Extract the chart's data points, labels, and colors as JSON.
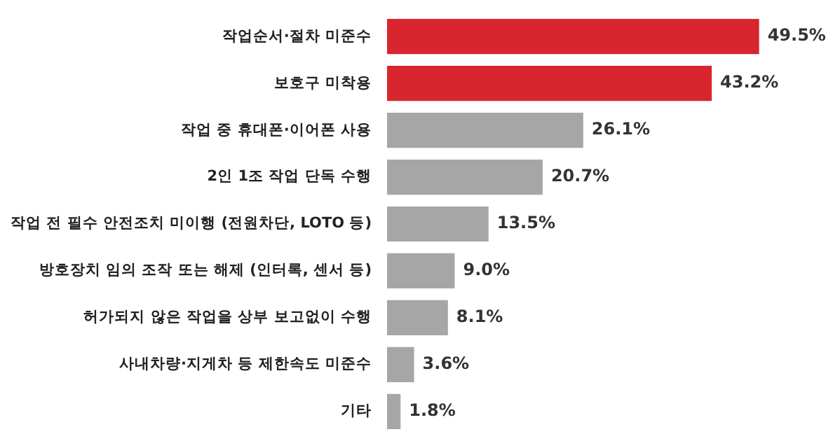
{
  "chart_data": {
    "type": "bar",
    "orientation": "horizontal",
    "categories": [
      "작업순서·절차 미준수",
      "보호구 미착용",
      "작업 중 휴대폰·이어폰 사용",
      "2인 1조 작업 단독 수행",
      "작업 전 필수 안전조치 미이행 (전원차단, LOTO 등)",
      "방호장치 임의 조작 또는 해제 (인터록, 센서 등)",
      "허가되지 않은 작업을 상부 보고없이 수행",
      "사내차량·지게차 등 제한속도 미준수",
      "기타"
    ],
    "values": [
      49.5,
      43.2,
      26.1,
      20.7,
      13.5,
      9.0,
      8.1,
      3.6,
      1.8
    ],
    "value_labels": [
      "49.5%",
      "43.2%",
      "26.1%",
      "20.7%",
      "13.5%",
      "9.0%",
      "8.1%",
      "3.6%",
      "1.8%"
    ],
    "colors": [
      "#d9262e",
      "#d9262e",
      "#a6a6a6",
      "#a6a6a6",
      "#a6a6a6",
      "#a6a6a6",
      "#a6a6a6",
      "#a6a6a6",
      "#a6a6a6"
    ],
    "legend": false
  }
}
